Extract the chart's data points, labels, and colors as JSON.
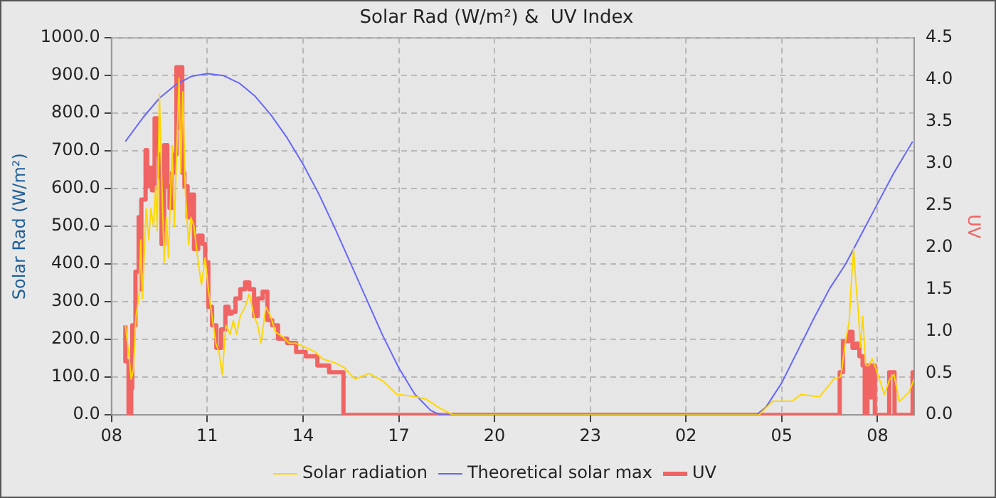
{
  "chart_data": {
    "type": "line",
    "title": "Solar Rad (W/m²) &  UV Index",
    "ylabel": "Solar Rad (W/m²)",
    "y2label": "UV",
    "xlim": [
      "--01-01T08:00",
      "--01-02T09:09"
    ],
    "xticks": [
      {
        "value": "--01-01T08:00",
        "label": "08"
      },
      {
        "value": "--01-01T11:00",
        "label": "11"
      },
      {
        "value": "--01-01T14:00",
        "label": "14"
      },
      {
        "value": "--01-01T17:00",
        "label": "17"
      },
      {
        "value": "--01-01T20:00",
        "label": "20"
      },
      {
        "value": "--01-01T23:00",
        "label": "23"
      },
      {
        "value": "--01-02T02:00",
        "label": "02"
      },
      {
        "value": "--01-02T05:00",
        "label": "05"
      },
      {
        "value": "--01-02T08:00",
        "label": "08"
      }
    ],
    "ylim": [
      0,
      1000
    ],
    "yticks": [
      {
        "value": 0,
        "label": "0.0"
      },
      {
        "value": 100,
        "label": "100.0"
      },
      {
        "value": 200,
        "label": "200.0"
      },
      {
        "value": 300,
        "label": "300.0"
      },
      {
        "value": 400,
        "label": "400.0"
      },
      {
        "value": 500,
        "label": "500.0"
      },
      {
        "value": 600,
        "label": "600.0"
      },
      {
        "value": 700,
        "label": "700.0"
      },
      {
        "value": 800,
        "label": "800.0"
      },
      {
        "value": 900,
        "label": "900.0"
      },
      {
        "value": 1000,
        "label": "1000.0"
      }
    ],
    "y2lim": [
      0,
      4.5
    ],
    "y2ticks": [
      {
        "value": 0,
        "label": "0.0"
      },
      {
        "value": 0.5,
        "label": "0.5"
      },
      {
        "value": 1,
        "label": "1.0"
      },
      {
        "value": 1.5,
        "label": "1.5"
      },
      {
        "value": 2,
        "label": "2.0"
      },
      {
        "value": 2.5,
        "label": "2.5"
      },
      {
        "value": 3,
        "label": "3.0"
      },
      {
        "value": 3.5,
        "label": "3.5"
      },
      {
        "value": 4,
        "label": "4.0"
      },
      {
        "value": 4.5,
        "label": "4.5"
      }
    ],
    "grid": true,
    "legend": "bottom",
    "marker": "none",
    "series": [
      {
        "name": "Solar radiation",
        "color": "#ffd700",
        "x": [
          "--01-01T08:26",
          "--01-01T08:32",
          "--01-01T08:37",
          "--01-01T08:41",
          "--01-01T08:46",
          "--01-01T08:52",
          "--01-01T08:55",
          "--01-01T08:58",
          "--01-01T09:05",
          "--01-01T09:10",
          "--01-01T09:14",
          "--01-01T09:19",
          "--01-01T09:23",
          "--01-01T09:26",
          "--01-01T09:30",
          "--01-01T09:34",
          "--01-01T09:39",
          "--01-01T09:43",
          "--01-01T09:47",
          "--01-01T09:54",
          "--01-01T09:58",
          "--01-01T10:04",
          "--01-01T10:07",
          "--01-01T10:10",
          "--01-01T10:14",
          "--01-01T10:19",
          "--01-01T10:25",
          "--01-01T10:29",
          "--01-01T10:35",
          "--01-01T10:43",
          "--01-01T10:49",
          "--01-01T10:56",
          "--01-01T11:02",
          "--01-01T11:09",
          "--01-01T11:16",
          "--01-01T11:22",
          "--01-01T11:28",
          "--01-01T11:35",
          "--01-01T11:43",
          "--01-01T11:49",
          "--01-01T11:55",
          "--01-01T12:02",
          "--01-01T12:11",
          "--01-01T12:19",
          "--01-01T12:28",
          "--01-01T12:35",
          "--01-01T12:41",
          "--01-01T12:50",
          "--01-01T12:59",
          "--01-01T13:08",
          "--01-01T13:21",
          "--01-01T13:34",
          "--01-01T13:47",
          "--01-01T14:05",
          "--01-01T14:23",
          "--01-01T14:36",
          "--01-01T15:02",
          "--01-01T15:18",
          "--01-01T15:38",
          "--01-01T16:04",
          "--01-01T16:31",
          "--01-01T16:57",
          "--01-01T17:24",
          "--01-01T17:50",
          "--01-01T18:17",
          "--01-01T18:42",
          "--01-02T04:17",
          "--01-02T04:43",
          "--01-02T05:19",
          "--01-02T05:36",
          "--01-02T06:11",
          "--01-02T06:38",
          "--01-02T06:51",
          "--01-02T07:00",
          "--01-02T07:07",
          "--01-02T07:11",
          "--01-02T07:15",
          "--01-02T07:19",
          "--01-02T07:24",
          "--01-02T07:28",
          "--01-02T07:32",
          "--01-02T07:38",
          "--01-02T07:44",
          "--01-02T07:50",
          "--01-02T07:58",
          "--01-02T08:13",
          "--01-02T08:23",
          "--01-02T08:31",
          "--01-02T08:41",
          "--01-02T08:59",
          "--01-02T09:09"
        ],
        "values": [
          238,
          167,
          95,
          119,
          262,
          321,
          464,
          309,
          547,
          464,
          547,
          500,
          607,
          488,
          851,
          643,
          405,
          524,
          417,
          714,
          500,
          762,
          893,
          643,
          857,
          583,
          452,
          524,
          500,
          405,
          345,
          417,
          333,
          262,
          190,
          167,
          107,
          238,
          214,
          250,
          214,
          262,
          286,
          321,
          262,
          238,
          190,
          286,
          262,
          220,
          208,
          190,
          190,
          179,
          167,
          149,
          137,
          125,
          95,
          110,
          89,
          54,
          50,
          43,
          18,
          0,
          0,
          36,
          36,
          54,
          48,
          95,
          101,
          196,
          250,
          357,
          440,
          357,
          274,
          179,
          262,
          131,
          131,
          149,
          119,
          54,
          95,
          107,
          36,
          60,
          95
        ]
      },
      {
        "name": "Theoretical solar max",
        "color": "#6666ff",
        "x": [
          "--01-01T08:26",
          "--01-01T09:00",
          "--01-01T09:30",
          "--01-01T10:00",
          "--01-01T10:30",
          "--01-01T11:00",
          "--01-01T11:30",
          "--01-01T12:00",
          "--01-01T12:30",
          "--01-01T13:00",
          "--01-01T13:30",
          "--01-01T14:00",
          "--01-01T14:30",
          "--01-01T15:00",
          "--01-01T15:30",
          "--01-01T16:00",
          "--01-01T16:30",
          "--01-01T17:00",
          "--01-01T17:30",
          "--01-01T18:00",
          "--01-01T18:18",
          "--01-02T04:12",
          "--01-02T04:30",
          "--01-02T05:00",
          "--01-02T05:30",
          "--01-02T06:00",
          "--01-02T06:30",
          "--01-02T07:00",
          "--01-02T07:30",
          "--01-02T08:00",
          "--01-02T08:30",
          "--01-02T09:06"
        ],
        "values": [
          725,
          790,
          840,
          875,
          898,
          905,
          900,
          880,
          845,
          795,
          735,
          665,
          585,
          495,
          400,
          305,
          210,
          125,
          55,
          12,
          0,
          0,
          20,
          85,
          170,
          255,
          335,
          400,
          480,
          560,
          640,
          725
        ]
      },
      {
        "name": "UV",
        "color": "#f06464",
        "axis": "y2",
        "type": "step",
        "x": [
          "--01-01T08:26",
          "--01-01T08:32",
          "--01-01T08:37",
          "--01-01T08:39",
          "--01-01T08:45",
          "--01-01T08:51",
          "--01-01T08:55",
          "--01-01T08:56",
          "--01-01T09:04",
          "--01-01T09:07",
          "--01-01T09:13",
          "--01-01T09:16",
          "--01-01T09:21",
          "--01-01T09:26",
          "--01-01T09:30",
          "--01-01T09:34",
          "--01-01T09:39",
          "--01-01T09:45",
          "--01-01T09:49",
          "--01-01T09:54",
          "--01-01T09:58",
          "--01-01T10:02",
          "--01-01T10:07",
          "--01-01T10:10",
          "--01-01T10:13",
          "--01-01T10:17",
          "--01-01T10:23",
          "--01-01T10:29",
          "--01-01T10:35",
          "--01-01T10:43",
          "--01-01T10:51",
          "--01-01T10:56",
          "--01-01T11:02",
          "--01-01T11:09",
          "--01-01T11:17",
          "--01-01T11:26",
          "--01-01T11:34",
          "--01-01T11:40",
          "--01-01T11:46",
          "--01-01T11:53",
          "--01-01T12:02",
          "--01-01T12:11",
          "--01-01T12:19",
          "--01-01T12:28",
          "--01-01T12:35",
          "--01-01T12:44",
          "--01-01T12:53",
          "--01-01T13:02",
          "--01-01T13:13",
          "--01-01T13:30",
          "--01-01T13:47",
          "--01-01T14:05",
          "--01-01T14:27",
          "--01-01T14:49",
          "--01-01T15:16",
          "--01-02T06:49",
          "--01-02T06:55",
          "--01-02T07:06",
          "--01-02T07:13",
          "--01-02T07:20",
          "--01-02T07:26",
          "--01-02T07:32",
          "--01-02T07:36",
          "--01-02T07:41",
          "--01-02T07:47",
          "--01-02T07:50",
          "--01-02T07:55",
          "--01-02T08:22",
          "--01-02T08:29",
          "--01-02T08:32",
          "--01-02T09:06",
          "--01-02T09:07",
          "--01-02T09:09"
        ],
        "values": [
          1.07,
          0.64,
          0,
          0.32,
          1.07,
          1.71,
          2.36,
          1.5,
          2.57,
          3.16,
          2.73,
          2.95,
          2.68,
          3.54,
          3.11,
          2.84,
          2.04,
          3.22,
          2.73,
          2.47,
          2.89,
          3.11,
          4.15,
          3.43,
          4.15,
          2.89,
          2.73,
          2.36,
          2.63,
          1.98,
          2.14,
          2.04,
          1.82,
          1.29,
          1.07,
          0.8,
          1.02,
          1.29,
          1.21,
          1.23,
          1.39,
          1.5,
          1.58,
          1.5,
          1.18,
          1.39,
          1.47,
          1.13,
          1.07,
          0.91,
          0.86,
          0.75,
          0.7,
          0.59,
          0.51,
          0,
          0.51,
          0.88,
          0.99,
          0.8,
          0.85,
          0.7,
          0.59,
          0,
          0.59,
          0.21,
          0.59,
          0,
          0.51,
          0.51,
          0,
          0.51,
          0.27
        ]
      }
    ]
  }
}
